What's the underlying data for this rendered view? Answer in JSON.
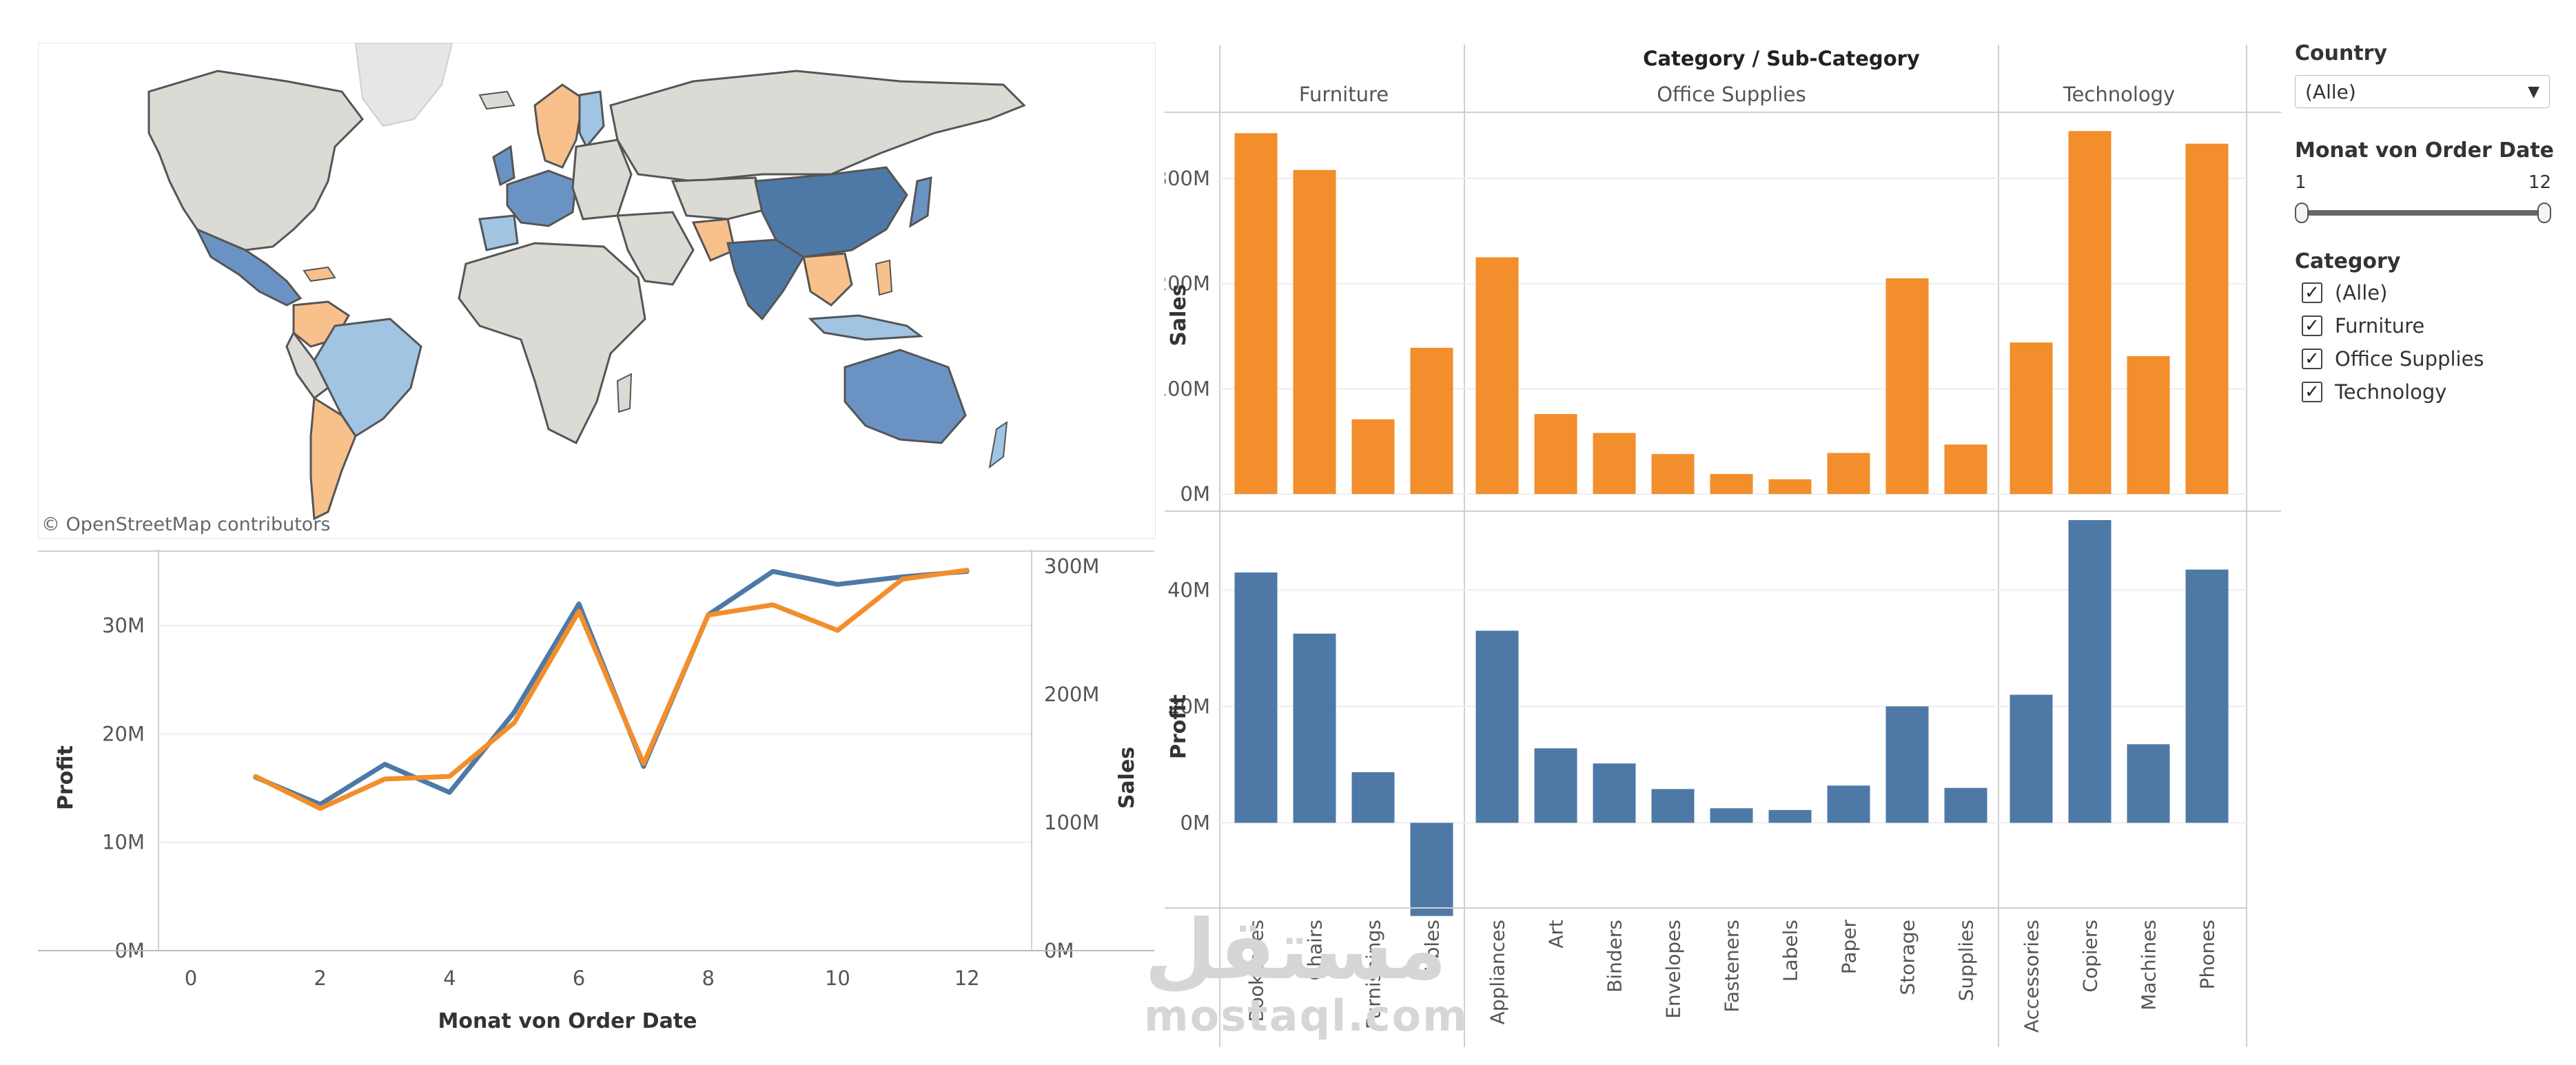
{
  "colors": {
    "orange": "#f28e2b",
    "blue": "#4e79a7",
    "light_blue": "#a0c4e2",
    "mid_blue": "#6a93c4",
    "light_orange": "#f8c08a",
    "map_gray": "#dcdad5",
    "map_border": "#555555"
  },
  "map": {
    "credit": "© OpenStreetMap contributors"
  },
  "filters": {
    "country": {
      "title": "Country",
      "selected": "(Alle)"
    },
    "month": {
      "title": "Monat von Order Date",
      "min": "1",
      "max": "12"
    },
    "category": {
      "title": "Category",
      "items": [
        "(Alle)",
        "Furniture",
        "Office Supplies",
        "Technology"
      ]
    }
  },
  "watermark": {
    "arabic": "مستقل",
    "latin": "mostaql.com"
  },
  "chart_data": [
    {
      "type": "line",
      "xlabel": "Monat von Order Date",
      "ylabel": "Profit",
      "y2label": "Sales",
      "x": [
        1,
        2,
        3,
        4,
        5,
        6,
        7,
        8,
        9,
        10,
        11,
        12
      ],
      "xticks": [
        "0",
        "2",
        "4",
        "6",
        "8",
        "10",
        "12"
      ],
      "xlim": [
        -0.5,
        13
      ],
      "ylim": [
        0,
        37000000
      ],
      "y2lim": [
        0,
        313000000
      ],
      "yticks": [
        "0M",
        "10M",
        "20M",
        "30M"
      ],
      "y2ticks": [
        "0M",
        "100M",
        "200M",
        "300M"
      ],
      "series": [
        {
          "axis": "left",
          "color": "#4e79a7",
          "values": [
            16000000,
            13500000,
            17200000,
            14600000,
            22000000,
            32000000,
            17000000,
            31000000,
            35000000,
            33800000,
            34500000,
            35000000
          ]
        },
        {
          "axis": "right",
          "color": "#f28e2b",
          "values": [
            136000000,
            111000000,
            134000000,
            136000000,
            178000000,
            265000000,
            146000000,
            262000000,
            270000000,
            250000000,
            290000000,
            297000000
          ]
        }
      ]
    },
    {
      "type": "bar",
      "title": "Category / Sub-Category",
      "groups": [
        {
          "name": "Furniture",
          "categories": [
            "Bookcases",
            "Chairs",
            "Furnishings",
            "Tables"
          ]
        },
        {
          "name": "Office Supplies",
          "categories": [
            "Appliances",
            "Art",
            "Binders",
            "Envelopes",
            "Fasteners",
            "Labels",
            "Paper",
            "Storage",
            "Supplies"
          ]
        },
        {
          "name": "Technology",
          "categories": [
            "Accessories",
            "Copiers",
            "Machines",
            "Phones"
          ]
        }
      ],
      "sales": {
        "ylabel": "Sales",
        "ylim": [
          -15000000,
          355000000
        ],
        "yticks": [
          "0M",
          "100M",
          "200M",
          "300M"
        ],
        "values": [
          343000000,
          308000000,
          71000000,
          139000000,
          225000000,
          76000000,
          58000000,
          38000000,
          19000000,
          14000000,
          39000000,
          205000000,
          47000000,
          144000000,
          345000000,
          131000000,
          333000000
        ]
      },
      "profit": {
        "ylabel": "Profit",
        "ylim": [
          -19000000,
          52000000
        ],
        "yticks": [
          "0M",
          "20M",
          "40M"
        ],
        "values": [
          43000000,
          32500000,
          8700000,
          -16000000,
          33000000,
          12800000,
          10200000,
          5800000,
          2500000,
          2200000,
          6400000,
          20000000,
          6000000,
          22000000,
          52000000,
          13500000,
          43500000
        ]
      }
    }
  ]
}
